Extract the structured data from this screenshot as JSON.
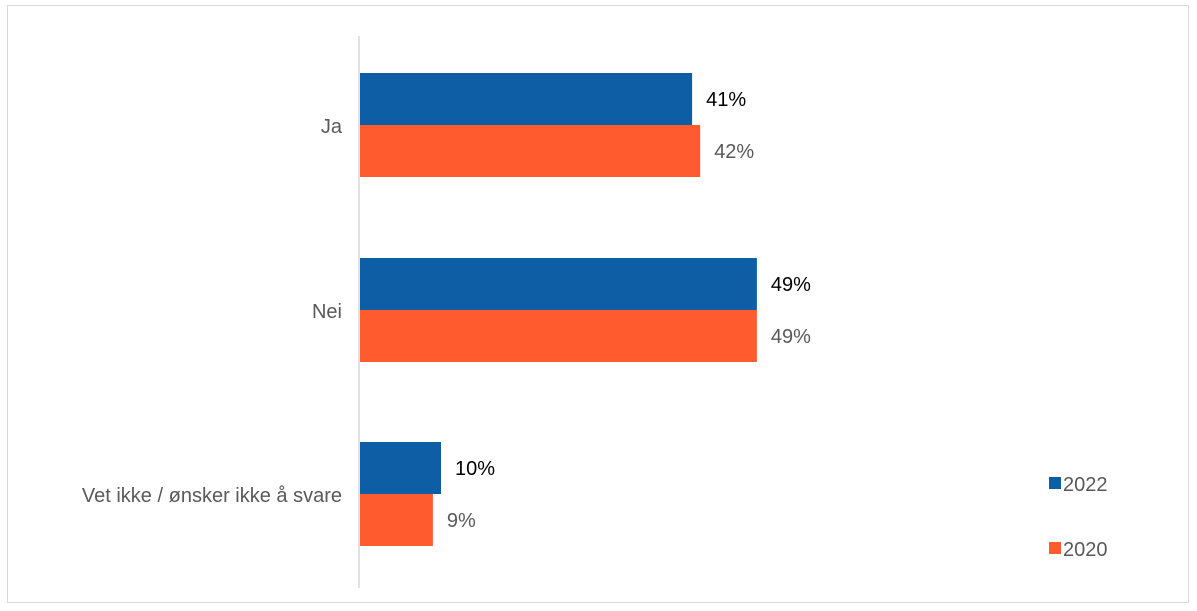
{
  "chart_data": {
    "type": "bar",
    "orientation": "horizontal",
    "categories": [
      "Ja",
      "Nei",
      "Vet ikke / ønsker ikke å svare"
    ],
    "series": [
      {
        "name": "2022",
        "values": [
          41,
          49,
          10
        ],
        "labels": [
          "41%",
          "49%",
          "10%"
        ],
        "color": "#0e5ea6",
        "label_color": "#000000"
      },
      {
        "name": "2020",
        "values": [
          42,
          49,
          9
        ],
        "labels": [
          "42%",
          "49%",
          "9%"
        ],
        "color": "#ff5b2e",
        "label_color": "#595959"
      }
    ],
    "xlim": [
      0,
      100
    ],
    "grid": false,
    "legend_position": "right",
    "axis_color": "#d9d9d9"
  }
}
